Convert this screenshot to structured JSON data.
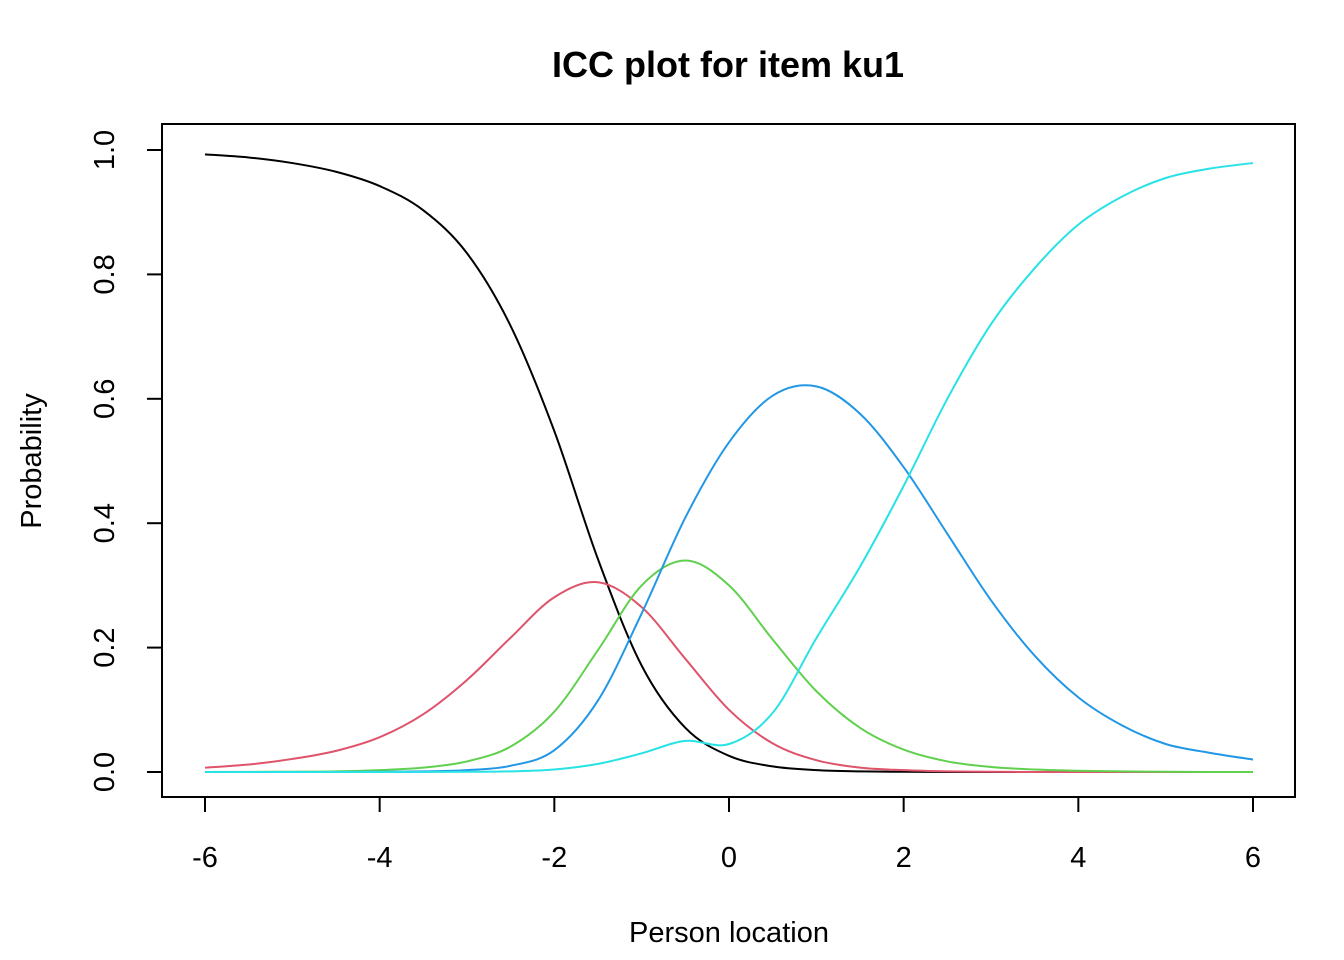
{
  "chart_data": {
    "type": "line",
    "title": "ICC plot for item ku1",
    "xlabel": "Person location",
    "ylabel": "Probability",
    "xlim": [
      -6,
      6
    ],
    "ylim": [
      0,
      1
    ],
    "xticks": [
      -6,
      -4,
      -2,
      0,
      2,
      4,
      6
    ],
    "yticks": [
      0.0,
      0.2,
      0.4,
      0.6,
      0.8,
      1.0
    ],
    "ytick_labels": [
      "0.0",
      "0.2",
      "0.4",
      "0.6",
      "0.8",
      "1.0"
    ],
    "grid": false,
    "legend": "none",
    "x": [
      -6,
      -5.5,
      -5,
      -4.5,
      -4,
      -3.5,
      -3,
      -2.5,
      -2,
      -1.5,
      -1,
      -0.5,
      0,
      0.5,
      1,
      1.5,
      2,
      2.5,
      3,
      3.5,
      4,
      4.5,
      5,
      5.5,
      6
    ],
    "series": [
      {
        "color": "#000000",
        "values": [
          0.993,
          0.988,
          0.979,
          0.965,
          0.942,
          0.903,
          0.834,
          0.717,
          0.548,
          0.342,
          0.171,
          0.071,
          0.026,
          0.009,
          0.003,
          0.001,
          0.0003,
          0.0001,
          0,
          0,
          0,
          0,
          0,
          0,
          0
        ]
      },
      {
        "color": "#DF536B",
        "values": [
          0.007,
          0.012,
          0.021,
          0.034,
          0.056,
          0.093,
          0.148,
          0.216,
          0.281,
          0.305,
          0.265,
          0.182,
          0.1,
          0.046,
          0.019,
          0.007,
          0.003,
          0.001,
          0.0003,
          0,
          0,
          0,
          0,
          0,
          0
        ]
      },
      {
        "color": "#61D04F",
        "values": [
          0.0001,
          0.0002,
          0.0005,
          0.001,
          0.003,
          0.007,
          0.017,
          0.041,
          0.097,
          0.196,
          0.3,
          0.34,
          0.3,
          0.213,
          0.13,
          0.071,
          0.036,
          0.017,
          0.008,
          0.004,
          0.002,
          0.001,
          0.0003,
          0.0001,
          0
        ]
      },
      {
        "color": "#2297E6",
        "values": [
          0,
          0,
          0,
          0.0001,
          0.0003,
          0.001,
          0.003,
          0.01,
          0.035,
          0.115,
          0.255,
          0.409,
          0.53,
          0.605,
          0.62,
          0.576,
          0.49,
          0.383,
          0.276,
          0.187,
          0.12,
          0.075,
          0.045,
          0.031,
          0.02
        ]
      },
      {
        "color": "#28E2E5",
        "values": [
          0,
          0,
          0,
          0,
          0,
          0.0001,
          0.0003,
          0.001,
          0.004,
          0.013,
          0.03,
          0.05,
          0.045,
          0.095,
          0.215,
          0.33,
          0.46,
          0.6,
          0.72,
          0.81,
          0.88,
          0.925,
          0.955,
          0.97,
          0.979
        ]
      }
    ]
  }
}
